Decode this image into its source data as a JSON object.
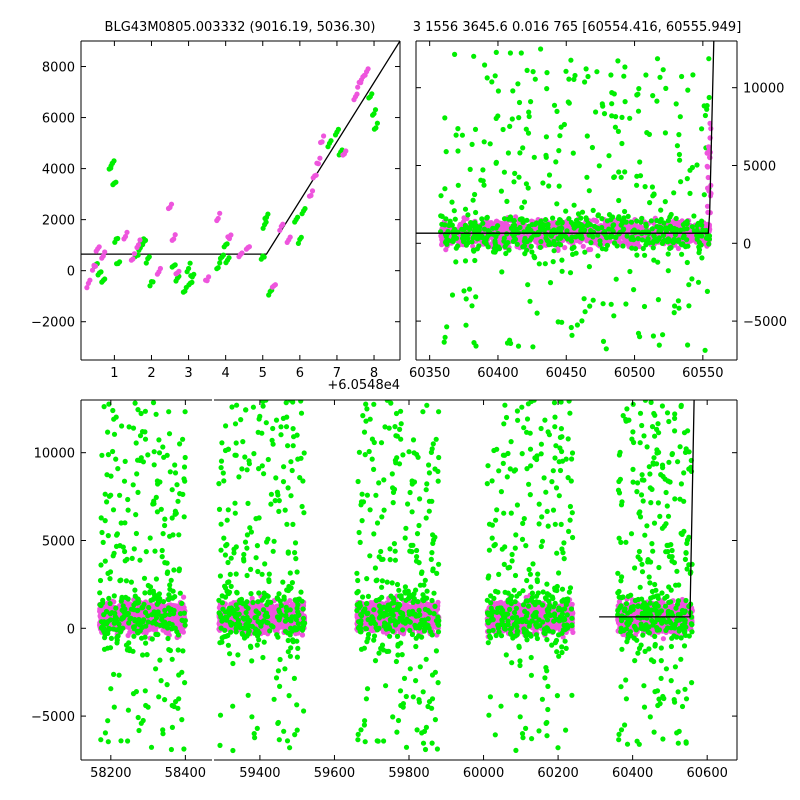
{
  "colors": {
    "green": "#00ee00",
    "magenta": "#ee55dd",
    "model": "#000000"
  },
  "chart_data": [
    {
      "type": "scatter",
      "title": "BLG43M0805.003332 (9016.19, 5036.30)",
      "offset_label": "+6.0548e4",
      "xlim": [
        0.1,
        8.7
      ],
      "ylim": [
        -3500,
        9000
      ],
      "xticks": [
        1,
        2,
        3,
        4,
        5,
        6,
        7,
        8
      ],
      "yticks": [
        -2000,
        0,
        2000,
        4000,
        6000,
        8000
      ],
      "series": [
        {
          "color": "green",
          "x": [
            0.5,
            0.6,
            0.7,
            0.9,
            0.95,
            1.0,
            1.05,
            1.1,
            1.6,
            1.7,
            1.75,
            1.8,
            1.9,
            2.0,
            2.6,
            2.7,
            2.9,
            3.0,
            3.05,
            3.1,
            3.8,
            3.9,
            4.0,
            4.05,
            5.0,
            5.05,
            5.1,
            5.2,
            5.9,
            6.0,
            6.1,
            6.8,
            7.0,
            7.1,
            7.9,
            8.0,
            8.05
          ],
          "y": [
            200,
            -100,
            -400,
            4100,
            4200,
            3400,
            1200,
            300,
            600,
            900,
            1200,
            1100,
            400,
            -500,
            200,
            -300,
            -800,
            100,
            -500,
            -200,
            200,
            600,
            1000,
            400,
            500,
            1800,
            2100,
            -800,
            2000,
            1200,
            2300,
            5000,
            5400,
            4600,
            6800,
            6200,
            5600
          ]
        },
        {
          "color": "magenta",
          "x": [
            0.3,
            0.45,
            0.55,
            0.7,
            1.3,
            1.5,
            1.65,
            2.2,
            2.5,
            2.6,
            2.7,
            3.5,
            3.8,
            4.1,
            4.4,
            4.6,
            5.3,
            5.5,
            5.7,
            6.3,
            6.4,
            6.5,
            6.6,
            7.2,
            7.5,
            7.6,
            7.7,
            7.8
          ],
          "y": [
            -500,
            100,
            900,
            600,
            1400,
            500,
            1100,
            0,
            2500,
            1300,
            -100,
            -300,
            2100,
            1300,
            600,
            900,
            -600,
            1700,
            1200,
            3000,
            3700,
            4300,
            5100,
            4600,
            6800,
            7300,
            7600,
            7800
          ]
        }
      ],
      "model": {
        "x": [
          0.1,
          5.1,
          8.7
        ],
        "y": [
          650,
          650,
          9000
        ]
      }
    },
    {
      "type": "scatter",
      "title": "3 1556 3645.6 0.016 765 [60554.416, 60555.949]",
      "xlim": [
        60340,
        60575
      ],
      "ylim": [
        -7500,
        13000
      ],
      "xticks": [
        60350,
        60400,
        60450,
        60500,
        60550
      ],
      "yticks": [
        -5000,
        0,
        5000,
        10000
      ],
      "model": {
        "x": [
          60340,
          60554,
          60555,
          60558
        ],
        "y": [
          650,
          650,
          2000,
          13000
        ]
      }
    },
    {
      "type": "scatter",
      "xlim": [
        58120,
        60680
      ],
      "ylim": [
        -7500,
        13000
      ],
      "xticks": [
        58200,
        58400,
        59400,
        59600,
        59800,
        60000,
        60200,
        60400,
        60600
      ],
      "yticks": [
        -5000,
        0,
        5000,
        10000
      ],
      "seasons": [
        {
          "start": 58170,
          "end": 58400
        },
        {
          "start": 59290,
          "end": 59520
        },
        {
          "start": 59660,
          "end": 59880
        },
        {
          "start": 60010,
          "end": 60240
        },
        {
          "start": 60360,
          "end": 60560
        }
      ],
      "model": {
        "x": [
          60310,
          60554,
          60555,
          60565
        ],
        "y": [
          650,
          650,
          2000,
          13000
        ]
      }
    }
  ]
}
